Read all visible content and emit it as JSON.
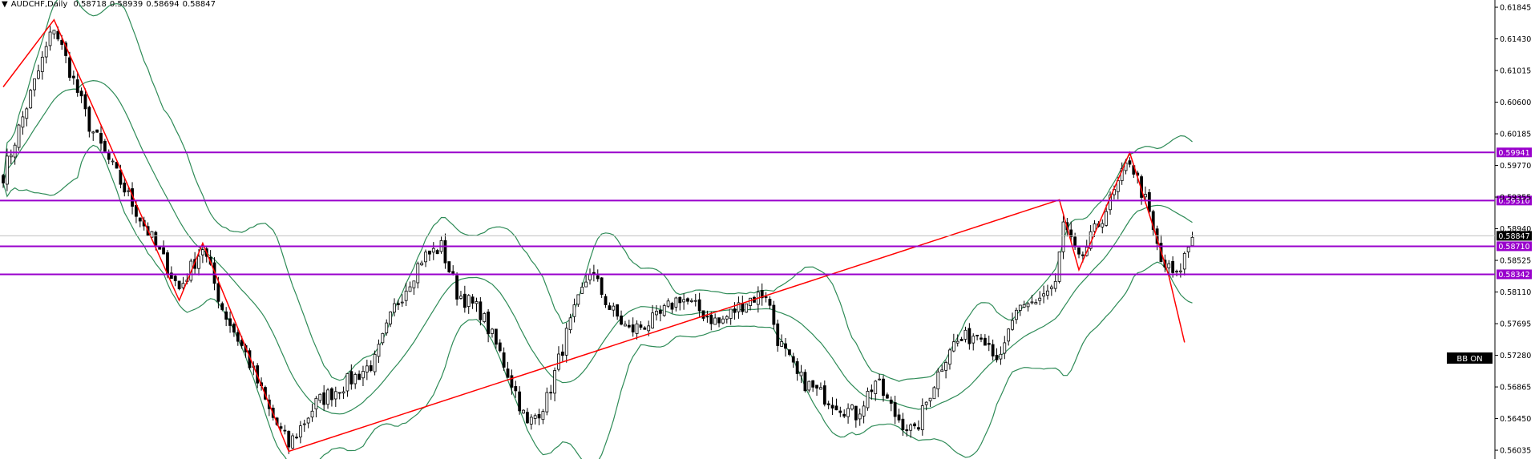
{
  "header": {
    "symbol_tf": "AUDCHF,Daily",
    "ohlc": [
      "0.58718",
      "0.58939",
      "0.58694",
      "0.58847"
    ]
  },
  "bb_label": "BB ON",
  "colors": {
    "bull": "#ffffff",
    "bear": "#000000",
    "wick": "#000000",
    "bands": "#2e8b57",
    "trend": "#ff0000",
    "levels": "#9900cc",
    "current_price_bg": "#000000"
  },
  "chart_data": {
    "type": "candlestick",
    "title": "",
    "ylim": [
      0.5592,
      0.6194
    ],
    "y_ticks": [
      "0.61845",
      "0.61430",
      "0.61015",
      "0.60600",
      "0.60185",
      "0.59770",
      "0.59355",
      "0.58940",
      "0.58525",
      "0.58110",
      "0.57695",
      "0.57280",
      "0.56865",
      "0.56450",
      "0.56035"
    ],
    "current_price": "0.58847",
    "horizontal_levels": [
      {
        "value": "0.59941"
      },
      {
        "value": "0.59310"
      },
      {
        "value": "0.58710"
      },
      {
        "value": "0.58342"
      }
    ],
    "zigzag": [
      [
        0,
        0.608
      ],
      [
        13,
        0.6168
      ],
      [
        45,
        0.58
      ],
      [
        51,
        0.5875
      ],
      [
        73,
        0.5602
      ],
      [
        270,
        0.5932
      ],
      [
        275,
        0.584
      ],
      [
        288,
        0.5994
      ],
      [
        298,
        0.5832
      ],
      [
        302,
        0.5745
      ]
    ],
    "close_anchors": [
      [
        0,
        0.5965
      ],
      [
        5,
        0.604
      ],
      [
        13,
        0.616
      ],
      [
        22,
        0.603
      ],
      [
        30,
        0.5955
      ],
      [
        40,
        0.5862
      ],
      [
        45,
        0.5815
      ],
      [
        51,
        0.587
      ],
      [
        56,
        0.579
      ],
      [
        62,
        0.573
      ],
      [
        68,
        0.5655
      ],
      [
        73,
        0.561
      ],
      [
        80,
        0.5665
      ],
      [
        90,
        0.57
      ],
      [
        95,
        0.572
      ],
      [
        100,
        0.579
      ],
      [
        107,
        0.5855
      ],
      [
        112,
        0.587
      ],
      [
        116,
        0.581
      ],
      [
        122,
        0.5785
      ],
      [
        127,
        0.573
      ],
      [
        131,
        0.568
      ],
      [
        134,
        0.5635
      ],
      [
        139,
        0.567
      ],
      [
        144,
        0.5755
      ],
      [
        150,
        0.584
      ],
      [
        155,
        0.579
      ],
      [
        160,
        0.576
      ],
      [
        167,
        0.5775
      ],
      [
        173,
        0.5805
      ],
      [
        177,
        0.579
      ],
      [
        183,
        0.577
      ],
      [
        190,
        0.58
      ],
      [
        195,
        0.581
      ],
      [
        198,
        0.575
      ],
      [
        203,
        0.57
      ],
      [
        208,
        0.568
      ],
      [
        213,
        0.5665
      ],
      [
        218,
        0.565
      ],
      [
        223,
        0.5695
      ],
      [
        228,
        0.565
      ],
      [
        233,
        0.5625
      ],
      [
        237,
        0.568
      ],
      [
        242,
        0.574
      ],
      [
        250,
        0.576
      ],
      [
        255,
        0.572
      ],
      [
        258,
        0.5775
      ],
      [
        265,
        0.5805
      ],
      [
        269,
        0.582
      ],
      [
        271,
        0.59
      ],
      [
        275,
        0.585
      ],
      [
        279,
        0.589
      ],
      [
        283,
        0.593
      ],
      [
        288,
        0.5985
      ],
      [
        292,
        0.593
      ],
      [
        296,
        0.585
      ],
      [
        300,
        0.583
      ],
      [
        304,
        0.5885
      ]
    ]
  }
}
